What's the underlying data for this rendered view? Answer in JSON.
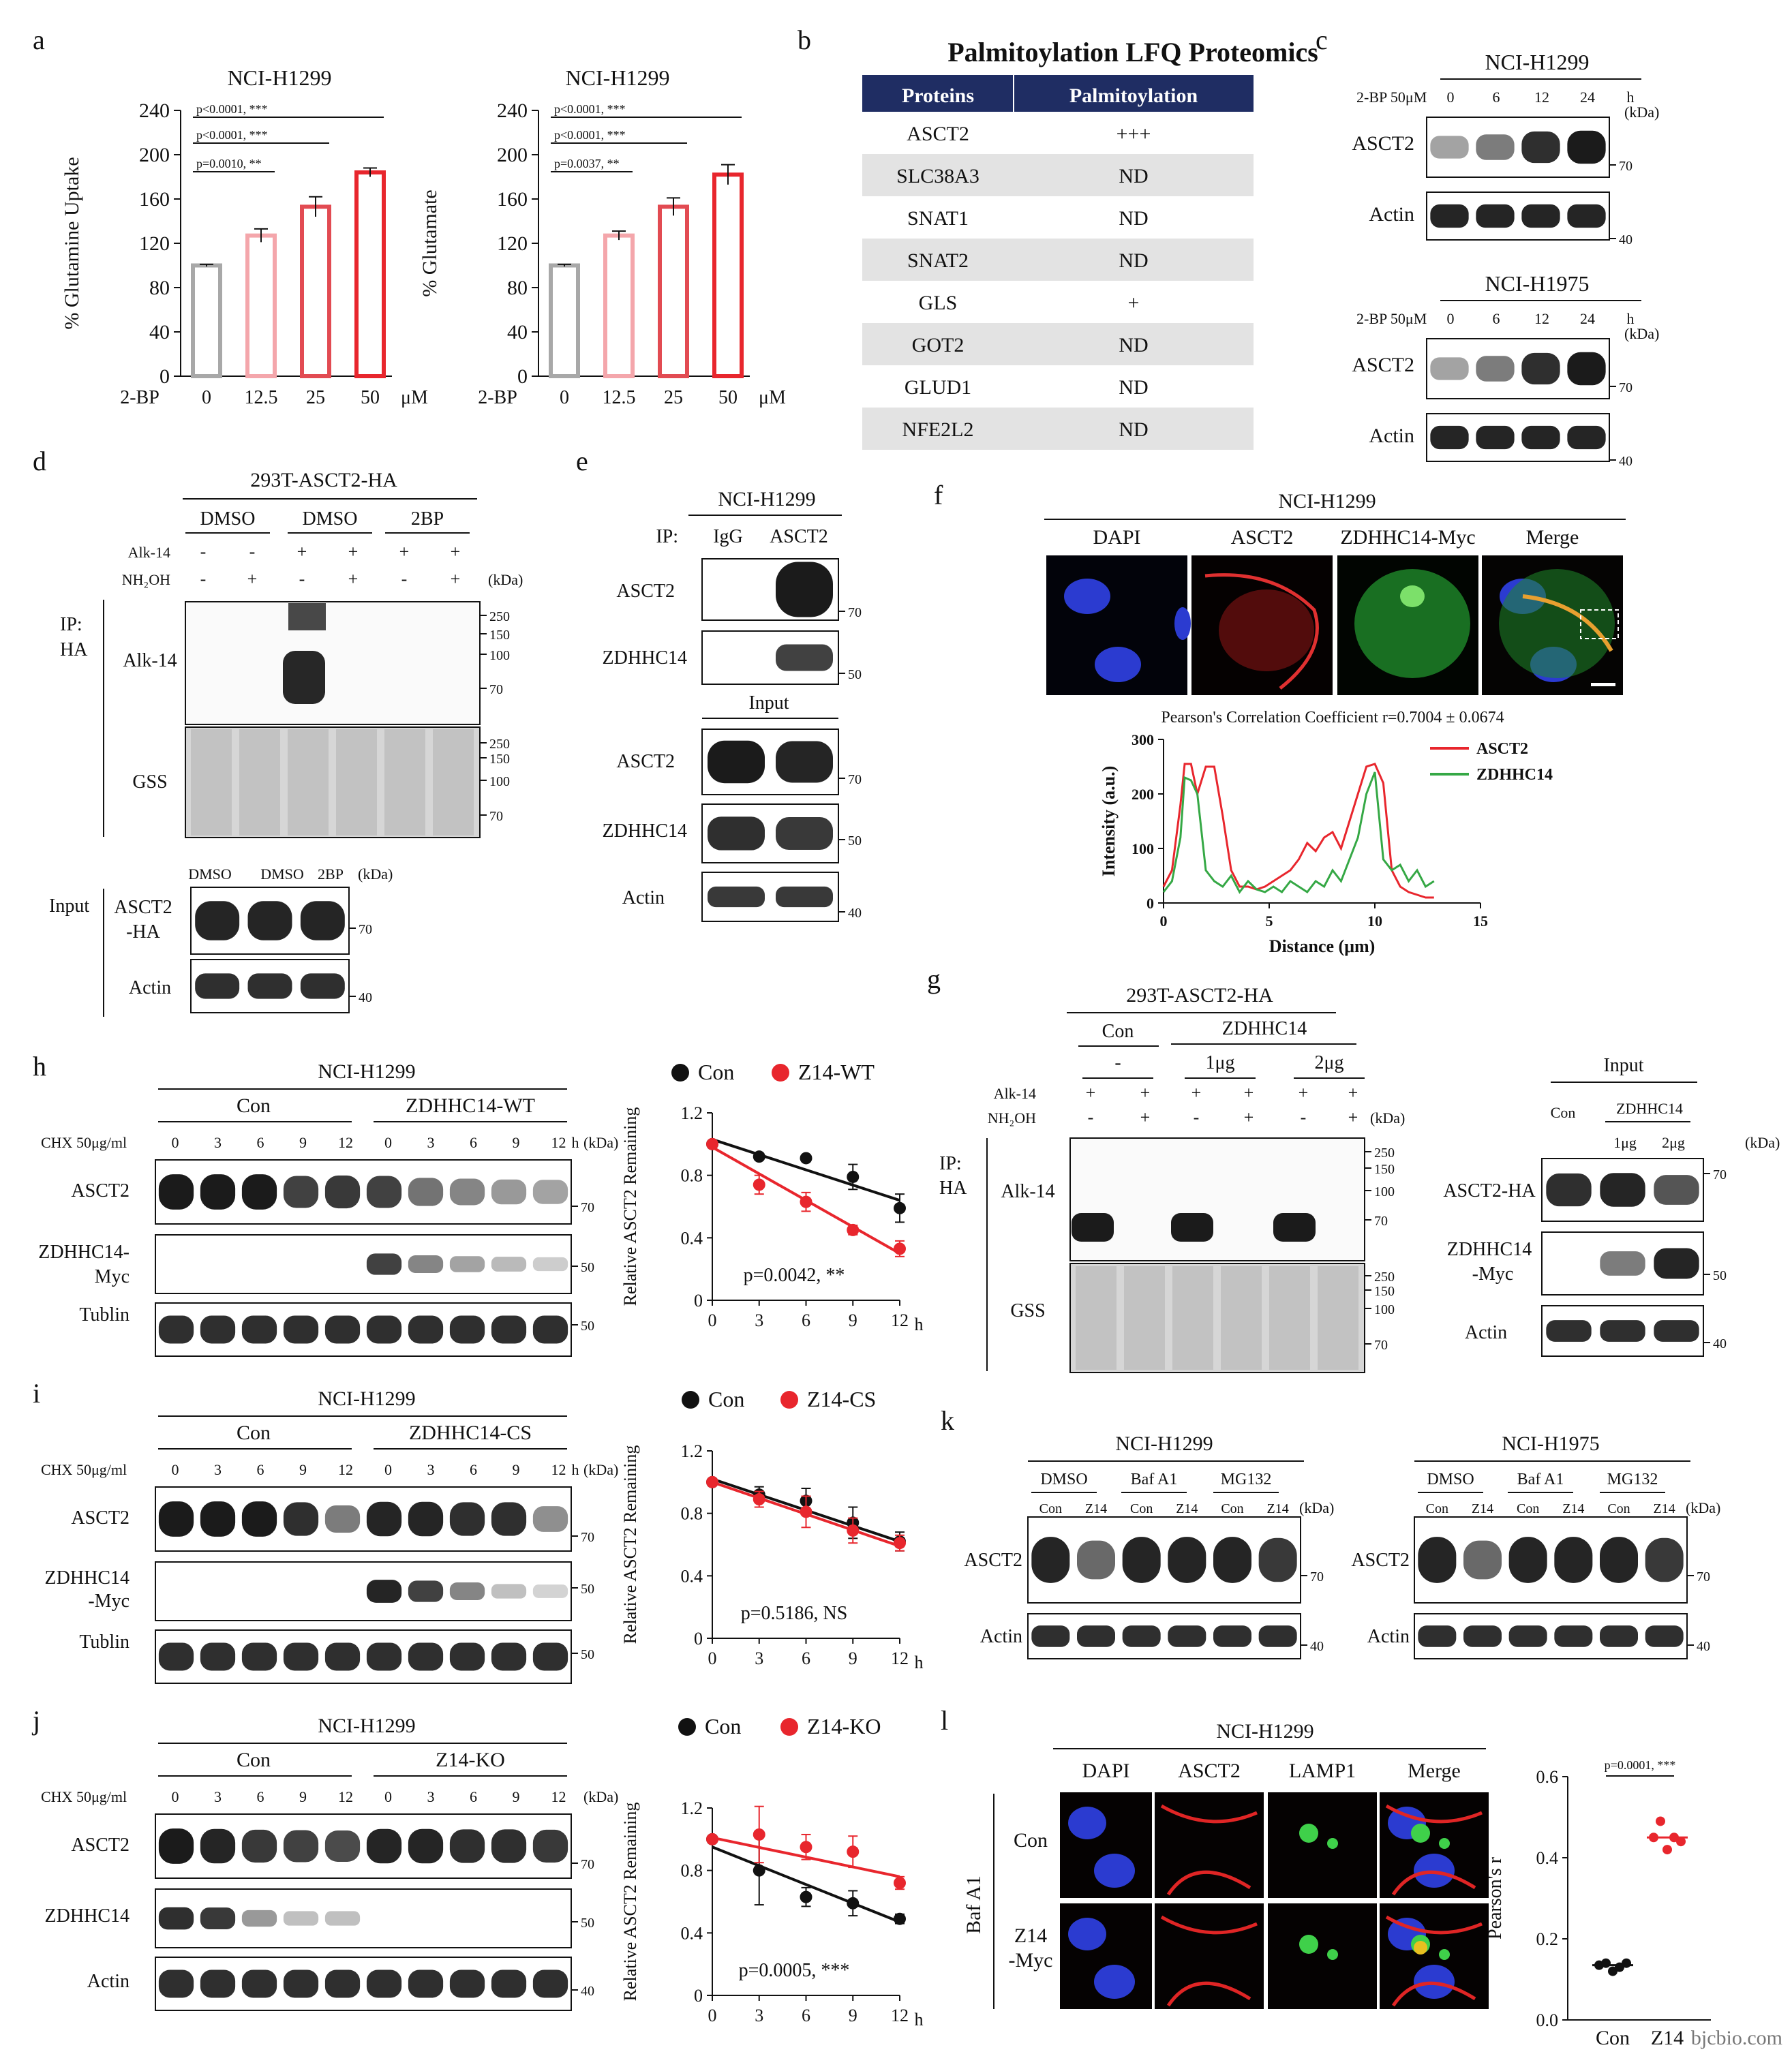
{
  "colors": {
    "red": "#e8262d",
    "pink": "#f4a6ab",
    "mid_red": "#e24b52",
    "grey": "#a8a8a8",
    "black": "#111111",
    "green": "#35a845",
    "navy": "#1f2d63",
    "stripe": "#e3e3e3",
    "blot": "#1b1b1b"
  },
  "watermark": "bjcbio.com",
  "panel_a": {
    "letter": "a",
    "units": "μM",
    "chart_data": [
      {
        "type": "bar",
        "title": "NCI-H1299",
        "ylabel": "% Glutamine Uptake",
        "xlabel": "2-BP",
        "categories": [
          "0",
          "12.5",
          "25",
          "50"
        ],
        "values": [
          100,
          127,
          153,
          184
        ],
        "errors": [
          1,
          6,
          9,
          4
        ],
        "ylim": [
          0,
          240
        ],
        "yticks": [
          "0",
          "40",
          "80",
          "120",
          "160",
          "200",
          "240"
        ],
        "annotations": [
          "p=0.0010, **",
          "p<0.0001, ***",
          "p<0.0001, ***"
        ]
      },
      {
        "type": "bar",
        "title": "NCI-H1299",
        "ylabel": "% Glutamate",
        "xlabel": "2-BP",
        "categories": [
          "0",
          "12.5",
          "25",
          "50"
        ],
        "values": [
          100,
          127,
          153,
          182
        ],
        "errors": [
          1,
          4,
          8,
          9
        ],
        "ylim": [
          0,
          240
        ],
        "yticks": [
          "0",
          "40",
          "80",
          "120",
          "160",
          "200",
          "240"
        ],
        "annotations": [
          "p=0.0037, **",
          "p<0.0001, ***",
          "p<0.0001, ***"
        ]
      }
    ]
  },
  "panel_b": {
    "letter": "b",
    "title": "Palmitoylation LFQ Proteomics",
    "headers": [
      "Proteins",
      "Palmitoylation"
    ],
    "rows": [
      [
        "ASCT2",
        "+++"
      ],
      [
        "SLC38A3",
        "ND"
      ],
      [
        "SNAT1",
        "ND"
      ],
      [
        "SNAT2",
        "ND"
      ],
      [
        "GLS",
        "+"
      ],
      [
        "GOT2",
        "ND"
      ],
      [
        "GLUD1",
        "ND"
      ],
      [
        "NFE2L2",
        "ND"
      ]
    ]
  },
  "panel_c": {
    "letter": "c",
    "blocks": [
      {
        "cell": "NCI-H1299",
        "treat": "2-BP 50μM",
        "times": [
          "0",
          "6",
          "12",
          "24"
        ],
        "h": "h",
        "kda": "(kDa)",
        "bands": [
          "ASCT2",
          "Actin"
        ],
        "markers": [
          "70",
          "40"
        ]
      },
      {
        "cell": "NCI-H1975",
        "treat": "2-BP 50μM",
        "times": [
          "0",
          "6",
          "12",
          "24"
        ],
        "h": "h",
        "kda": "(kDa)",
        "bands": [
          "ASCT2",
          "Actin"
        ],
        "markers": [
          "70",
          "40"
        ]
      }
    ]
  },
  "panel_d": {
    "letter": "d",
    "cell": "293T-ASCT2-HA",
    "groups": [
      "DMSO",
      "DMSO",
      "2BP"
    ],
    "alk": [
      "-",
      "-",
      "+",
      "+",
      "+",
      "+"
    ],
    "nh": [
      "-",
      "+",
      "-",
      "+",
      "-",
      "+"
    ],
    "alk_label": "Alk-14",
    "nh_label": "NH₂OH",
    "kda": "(kDa)",
    "ip": "IP:",
    "ip2": "HA",
    "blot1": "Alk-14",
    "blot2": "GSS",
    "markers": [
      "250",
      "150",
      "100",
      "70"
    ],
    "input": "Input",
    "input_groups": [
      "DMSO",
      "DMSO",
      "2BP"
    ],
    "input_bands": [
      "ASCT2",
      "-HA",
      "Actin"
    ],
    "input_markers": [
      "70",
      "40"
    ]
  },
  "panel_e": {
    "letter": "e",
    "cell": "NCI-H1299",
    "ip": "IP:",
    "cols": [
      "IgG",
      "ASCT2"
    ],
    "bands": [
      "ASCT2",
      "ZDHHC14"
    ],
    "input": "Input",
    "input_bands": [
      "ASCT2",
      "ZDHHC14",
      "Actin"
    ],
    "markers": [
      "70",
      "50",
      "70",
      "50",
      "40"
    ]
  },
  "panel_f": {
    "letter": "f",
    "cell": "NCI-H1299",
    "channels": [
      "DAPI",
      "ASCT2",
      "ZDHHC14-Myc",
      "Merge"
    ],
    "pearson": "Pearson's Correlation Coefficient r=0.7004 ± 0.0674",
    "chart_data": {
      "type": "line",
      "xlabel": "Distance (μm)",
      "ylabel": "Intensity (a.u.)",
      "xlim": [
        0,
        15
      ],
      "ylim": [
        0,
        300
      ],
      "xticks": [
        "0",
        "5",
        "10",
        "15"
      ],
      "yticks": [
        "0",
        "100",
        "200",
        "300"
      ],
      "series": [
        {
          "name": "ASCT2",
          "x": [
            0,
            0.4,
            0.8,
            1.0,
            1.3,
            1.6,
            2.0,
            2.4,
            2.8,
            3.2,
            3.6,
            4.0,
            4.4,
            4.8,
            5.2,
            5.6,
            6.0,
            6.4,
            6.8,
            7.2,
            7.6,
            8.0,
            8.4,
            8.8,
            9.2,
            9.6,
            10.0,
            10.4,
            10.8,
            11.2,
            11.6,
            12.0,
            12.4,
            12.8
          ],
          "y": [
            30,
            60,
            180,
            255,
            255,
            200,
            250,
            250,
            160,
            60,
            30,
            30,
            25,
            30,
            40,
            50,
            60,
            80,
            110,
            95,
            120,
            130,
            100,
            150,
            200,
            250,
            255,
            220,
            60,
            30,
            20,
            15,
            10,
            10
          ]
        },
        {
          "name": "ZDHHC14",
          "x": [
            0,
            0.4,
            0.8,
            1.0,
            1.3,
            1.6,
            2.0,
            2.4,
            2.8,
            3.2,
            3.6,
            4.0,
            4.4,
            4.8,
            5.2,
            5.6,
            6.0,
            6.4,
            6.8,
            7.2,
            7.6,
            8.0,
            8.4,
            8.8,
            9.2,
            9.6,
            10.0,
            10.4,
            10.8,
            11.2,
            11.6,
            12.0,
            12.4,
            12.8
          ],
          "y": [
            20,
            40,
            120,
            230,
            225,
            200,
            60,
            40,
            30,
            50,
            20,
            40,
            25,
            20,
            30,
            20,
            40,
            30,
            20,
            40,
            30,
            60,
            40,
            80,
            120,
            200,
            240,
            80,
            60,
            70,
            40,
            60,
            30,
            40
          ]
        }
      ]
    }
  },
  "panel_g": {
    "letter": "g",
    "cell": "293T-ASCT2-HA",
    "groups": [
      "Con",
      "ZDHHC14"
    ],
    "sub": [
      "-",
      "1μg",
      "2μg"
    ],
    "alk": [
      "+",
      "+",
      "+",
      "+",
      "+",
      "+"
    ],
    "nh": [
      "-",
      "+",
      "-",
      "+",
      "-",
      "+"
    ],
    "alk_label": "Alk-14",
    "nh_label": "NH₂OH",
    "kda": "(kDa)",
    "ip": "IP:",
    "ip2": "HA",
    "blot1": "Alk-14",
    "blot2": "GSS",
    "markers": [
      "250",
      "150",
      "100",
      "70"
    ],
    "input": "Input",
    "input_cols": [
      "Con",
      "ZDHHC14",
      "1μg",
      "2μg"
    ],
    "input_bands": [
      "ASCT2-HA",
      "ZDHHC14",
      "-Myc",
      "Actin"
    ],
    "input_markers": [
      "70",
      "50",
      "40"
    ]
  },
  "panel_h": {
    "letter": "h",
    "cell": "NCI-H1299",
    "groups": [
      "Con",
      "ZDHHC14-WT"
    ],
    "chx": "CHX 50μg/ml",
    "times": [
      "0",
      "3",
      "6",
      "9",
      "12",
      "0",
      "3",
      "6",
      "9",
      "12"
    ],
    "h": "h",
    "kda": "(kDa)",
    "bands": [
      "ASCT2",
      "ZDHHC14-",
      "Myc",
      "Tublin"
    ],
    "markers": [
      "70",
      "50",
      "50"
    ],
    "chart_data": {
      "type": "line",
      "ylabel": "Relative ASCT2 Remaining",
      "xticks": [
        "0",
        "3",
        "6",
        "9",
        "12"
      ],
      "xunit": "h",
      "ylim": [
        0,
        1.2
      ],
      "yticks": [
        "0",
        "0.4",
        "0.8",
        "1.2"
      ],
      "series": [
        {
          "name": "Con",
          "x": [
            0,
            3,
            6,
            9,
            12
          ],
          "y": [
            1.0,
            0.92,
            0.91,
            0.79,
            0.59
          ],
          "err": [
            0,
            0.02,
            0.02,
            0.08,
            0.09
          ]
        },
        {
          "name": "Z14-WT",
          "x": [
            0,
            3,
            6,
            9,
            12
          ],
          "y": [
            1.0,
            0.74,
            0.63,
            0.45,
            0.33
          ],
          "err": [
            0,
            0.06,
            0.06,
            0.03,
            0.05
          ]
        }
      ],
      "fit": [
        [
          1.03,
          0.64
        ],
        [
          0.98,
          0.3
        ]
      ],
      "annotation": "p=0.0042, **"
    }
  },
  "panel_i": {
    "letter": "i",
    "cell": "NCI-H1299",
    "groups": [
      "Con",
      "ZDHHC14-CS"
    ],
    "chx": "CHX 50μg/ml",
    "times": [
      "0",
      "3",
      "6",
      "9",
      "12",
      "0",
      "3",
      "6",
      "9",
      "12"
    ],
    "h": "h",
    "kda": "(kDa)",
    "bands": [
      "ASCT2",
      "ZDHHC14",
      "-Myc",
      "Tublin"
    ],
    "markers": [
      "70",
      "50",
      "50"
    ],
    "chart_data": {
      "type": "line",
      "ylabel": "Relative ASCT2 Remaining",
      "xticks": [
        "0",
        "3",
        "6",
        "9",
        "12"
      ],
      "xunit": "h",
      "ylim": [
        0,
        1.2
      ],
      "yticks": [
        "0",
        "0.4",
        "0.8",
        "1.2"
      ],
      "series": [
        {
          "name": "Con",
          "x": [
            0,
            3,
            6,
            9,
            12
          ],
          "y": [
            1.0,
            0.92,
            0.88,
            0.74,
            0.62
          ],
          "err": [
            0,
            0.05,
            0.08,
            0.1,
            0.06
          ]
        },
        {
          "name": "Z14-CS",
          "x": [
            0,
            3,
            6,
            9,
            12
          ],
          "y": [
            1.0,
            0.89,
            0.81,
            0.69,
            0.61
          ],
          "err": [
            0,
            0.05,
            0.1,
            0.08,
            0.05
          ]
        }
      ],
      "fit": [
        [
          1.02,
          0.62
        ],
        [
          1.0,
          0.59
        ]
      ],
      "annotation": "p=0.5186, NS"
    }
  },
  "panel_j": {
    "letter": "j",
    "cell": "NCI-H1299",
    "groups": [
      "Con",
      "Z14-KO"
    ],
    "chx": "CHX 50μg/ml",
    "times": [
      "0",
      "3",
      "6",
      "9",
      "12",
      "0",
      "3",
      "6",
      "9",
      "12"
    ],
    "kda": "(kDa)",
    "bands": [
      "ASCT2",
      "ZDHHC14",
      "Actin"
    ],
    "markers": [
      "70",
      "50",
      "40"
    ],
    "chart_data": {
      "type": "line",
      "ylabel": "Relative ASCT2 Remaining",
      "xticks": [
        "0",
        "3",
        "6",
        "9",
        "12"
      ],
      "xunit": "h",
      "ylim": [
        0,
        1.2
      ],
      "yticks": [
        "0",
        "0.4",
        "0.8",
        "1.2"
      ],
      "series": [
        {
          "name": "Con",
          "x": [
            0,
            3,
            6,
            9,
            12
          ],
          "y": [
            1.0,
            0.8,
            0.63,
            0.59,
            0.49
          ],
          "err": [
            0,
            0.22,
            0.06,
            0.08,
            0.03
          ]
        },
        {
          "name": "Z14-KO",
          "x": [
            0,
            3,
            6,
            9,
            12
          ],
          "y": [
            1.0,
            1.03,
            0.95,
            0.92,
            0.72
          ],
          "err": [
            0,
            0.18,
            0.08,
            0.1,
            0.04
          ]
        }
      ],
      "fit": [
        [
          0.95,
          0.47
        ],
        [
          1.01,
          0.76
        ]
      ],
      "annotation": "p=0.0005, ***"
    }
  },
  "panel_k": {
    "letter": "k",
    "blocks": [
      {
        "cell": "NCI-H1299",
        "groups": [
          "DMSO",
          "Baf A1",
          "MG132"
        ],
        "cols": [
          "Con",
          "Z14",
          "Con",
          "Z14",
          "Con",
          "Z14"
        ],
        "kda": "(kDa)",
        "bands": [
          "ASCT2",
          "Actin"
        ],
        "markers": [
          "70",
          "40"
        ]
      },
      {
        "cell": "NCI-H1975",
        "groups": [
          "DMSO",
          "Baf A1",
          "MG132"
        ],
        "cols": [
          "Con",
          "Z14",
          "Con",
          "Z14",
          "Con",
          "Z14"
        ],
        "kda": "(kDa)",
        "bands": [
          "ASCT2",
          "Actin"
        ],
        "markers": [
          "70",
          "40"
        ]
      }
    ]
  },
  "panel_l": {
    "letter": "l",
    "cell": "NCI-H1299",
    "channels": [
      "DAPI",
      "ASCT2",
      "LAMP1",
      "Merge"
    ],
    "side": "Baf A1",
    "rows": [
      "Con",
      "Z14",
      "-Myc"
    ],
    "chart_data": {
      "type": "scatter",
      "ylabel": "Pearson's r",
      "categories": [
        "Con",
        "Z14"
      ],
      "ylim": [
        0,
        0.6
      ],
      "yticks": [
        "0.0",
        "0.2",
        "0.4",
        "0.6"
      ],
      "points": [
        [
          0.135,
          0.14,
          0.12,
          0.13,
          0.14
        ],
        [
          0.45,
          0.49,
          0.42,
          0.45,
          0.44
        ]
      ],
      "means": [
        0.135,
        0.45
      ],
      "annotation": "p=0.0001, ***"
    }
  }
}
